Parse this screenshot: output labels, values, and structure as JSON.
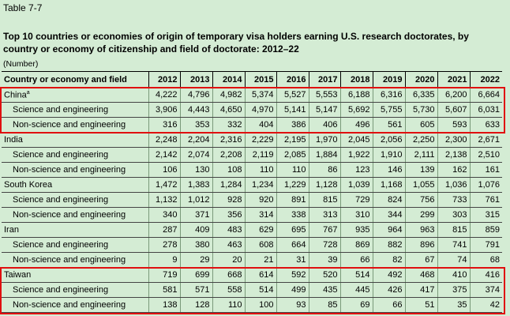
{
  "table_label": "Table 7-7",
  "title": "Top 10 countries or economies of origin of temporary visa holders earning U.S. research doctorates, by country or economy of citizenship and field of doctorate: 2012–22",
  "unit": "(Number)",
  "header": {
    "label": "Country or economy and field",
    "years": [
      "2012",
      "2013",
      "2014",
      "2015",
      "2016",
      "2017",
      "2018",
      "2019",
      "2020",
      "2021",
      "2022"
    ]
  },
  "rows": [
    {
      "label": "China",
      "note": "a",
      "type": "country",
      "values": [
        "4,222",
        "4,796",
        "4,982",
        "5,374",
        "5,527",
        "5,553",
        "6,188",
        "6,316",
        "6,335",
        "6,200",
        "6,664"
      ]
    },
    {
      "label": "Science and engineering",
      "type": "sub",
      "values": [
        "3,906",
        "4,443",
        "4,650",
        "4,970",
        "5,141",
        "5,147",
        "5,692",
        "5,755",
        "5,730",
        "5,607",
        "6,031"
      ]
    },
    {
      "label": "Non-science and engineering",
      "type": "sub",
      "values": [
        "316",
        "353",
        "332",
        "404",
        "386",
        "406",
        "496",
        "561",
        "605",
        "593",
        "633"
      ]
    },
    {
      "label": "India",
      "type": "country",
      "values": [
        "2,248",
        "2,204",
        "2,316",
        "2,229",
        "2,195",
        "1,970",
        "2,045",
        "2,056",
        "2,250",
        "2,300",
        "2,671"
      ]
    },
    {
      "label": "Science and engineering",
      "type": "sub",
      "values": [
        "2,142",
        "2,074",
        "2,208",
        "2,119",
        "2,085",
        "1,884",
        "1,922",
        "1,910",
        "2,111",
        "2,138",
        "2,510"
      ]
    },
    {
      "label": "Non-science and engineering",
      "type": "sub",
      "values": [
        "106",
        "130",
        "108",
        "110",
        "110",
        "86",
        "123",
        "146",
        "139",
        "162",
        "161"
      ]
    },
    {
      "label": "South Korea",
      "type": "country",
      "values": [
        "1,472",
        "1,383",
        "1,284",
        "1,234",
        "1,229",
        "1,128",
        "1,039",
        "1,168",
        "1,055",
        "1,036",
        "1,076"
      ]
    },
    {
      "label": "Science and engineering",
      "type": "sub",
      "values": [
        "1,132",
        "1,012",
        "928",
        "920",
        "891",
        "815",
        "729",
        "824",
        "756",
        "733",
        "761"
      ]
    },
    {
      "label": "Non-science and engineering",
      "type": "sub",
      "values": [
        "340",
        "371",
        "356",
        "314",
        "338",
        "313",
        "310",
        "344",
        "299",
        "303",
        "315"
      ]
    },
    {
      "label": "Iran",
      "type": "country",
      "values": [
        "287",
        "409",
        "483",
        "629",
        "695",
        "767",
        "935",
        "964",
        "963",
        "815",
        "859"
      ]
    },
    {
      "label": "Science and engineering",
      "type": "sub",
      "values": [
        "278",
        "380",
        "463",
        "608",
        "664",
        "728",
        "869",
        "882",
        "896",
        "741",
        "791"
      ]
    },
    {
      "label": "Non-science and engineering",
      "type": "sub",
      "values": [
        "9",
        "29",
        "20",
        "21",
        "31",
        "39",
        "66",
        "82",
        "67",
        "74",
        "68"
      ]
    },
    {
      "label": "Taiwan",
      "type": "country",
      "values": [
        "719",
        "699",
        "668",
        "614",
        "592",
        "520",
        "514",
        "492",
        "468",
        "410",
        "416"
      ]
    },
    {
      "label": "Science and engineering",
      "type": "sub",
      "values": [
        "581",
        "571",
        "558",
        "514",
        "499",
        "435",
        "445",
        "426",
        "417",
        "375",
        "374"
      ]
    },
    {
      "label": "Non-science and engineering",
      "type": "sub",
      "values": [
        "138",
        "128",
        "110",
        "100",
        "93",
        "85",
        "69",
        "66",
        "51",
        "35",
        "42"
      ]
    }
  ],
  "highlight_color": "#e01010"
}
